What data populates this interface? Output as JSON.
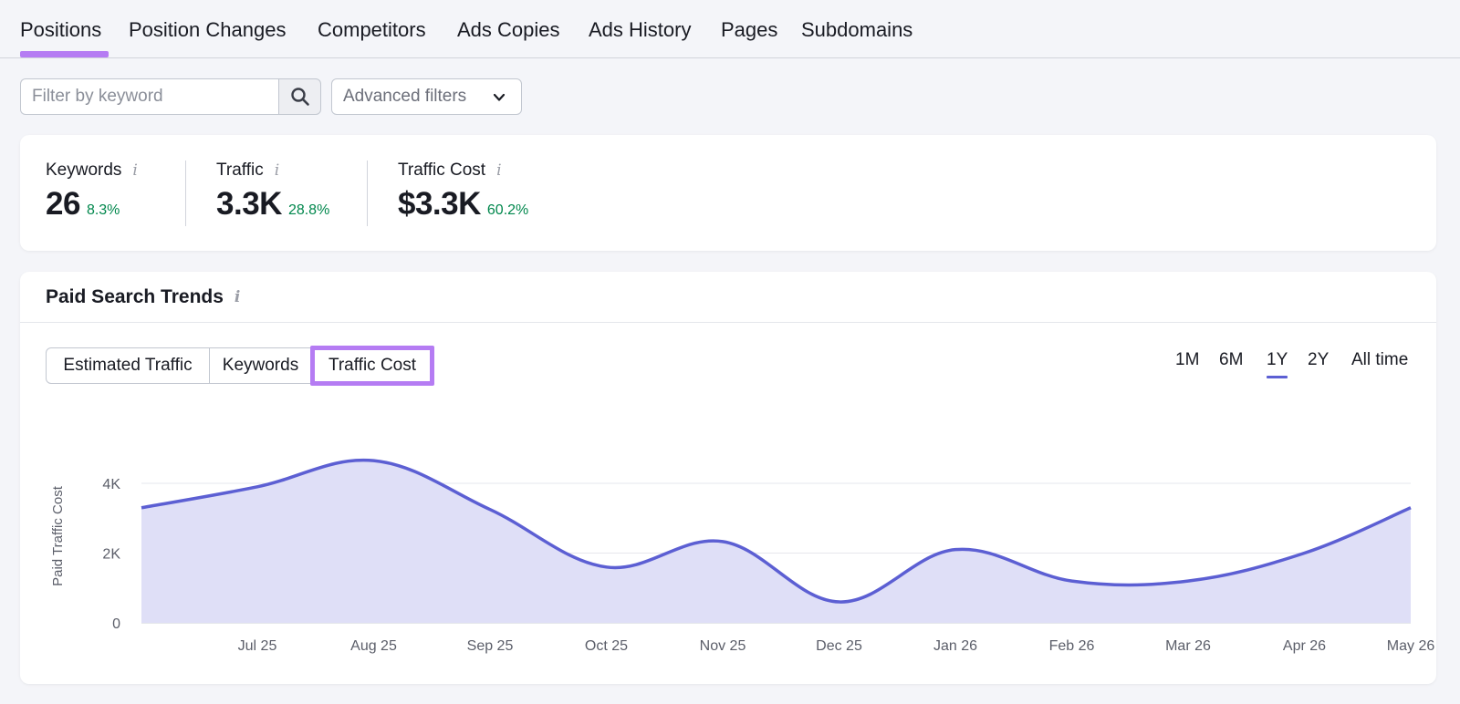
{
  "tabs": [
    {
      "label": "Positions",
      "active": true
    },
    {
      "label": "Position Changes"
    },
    {
      "label": "Competitors"
    },
    {
      "label": "Ads Copies"
    },
    {
      "label": "Ads History"
    },
    {
      "label": "Pages"
    },
    {
      "label": "Subdomains"
    }
  ],
  "filters": {
    "keyword_placeholder": "Filter by keyword",
    "advanced_label": "Advanced filters"
  },
  "summary": {
    "keywords": {
      "label": "Keywords",
      "value": "26",
      "change": "8.3%"
    },
    "traffic": {
      "label": "Traffic",
      "value": "3.3K",
      "change": "28.8%"
    },
    "traffic_cost": {
      "label": "Traffic Cost",
      "value": "$3.3K",
      "change": "60.2%"
    }
  },
  "trends": {
    "title": "Paid Search Trends",
    "metric_tabs": [
      "Estimated Traffic",
      "Keywords",
      "Traffic Cost"
    ],
    "selected_metric": "Traffic Cost",
    "ranges": [
      "1M",
      "6M",
      "1Y",
      "2Y",
      "All time"
    ],
    "selected_range": "1Y"
  },
  "colors": {
    "accent": "#b57cf3",
    "line": "#5c5fd3",
    "area": "#dfdff7",
    "positive": "#00874c"
  },
  "chart_data": {
    "type": "area",
    "ylabel": "Paid Traffic Cost",
    "ylim": [
      0,
      5000
    ],
    "y_ticks": [
      0,
      2000,
      4000
    ],
    "y_tick_labels": [
      "0",
      "2K",
      "4K"
    ],
    "x_tick_labels": [
      "Jul 25",
      "Aug 25",
      "Sep 25",
      "Oct 25",
      "Nov 25",
      "Dec 25",
      "Jan 26",
      "Feb 26",
      "Mar 26",
      "Apr 26",
      "May 26"
    ],
    "grid": true,
    "series": [
      {
        "x": [
          -1,
          0,
          1,
          2,
          3,
          4,
          5,
          6,
          7,
          8,
          9,
          10
        ],
        "values": [
          3300,
          3900,
          4650,
          3250,
          1600,
          2330,
          600,
          2100,
          1200,
          1200,
          2000,
          3300
        ]
      }
    ]
  }
}
